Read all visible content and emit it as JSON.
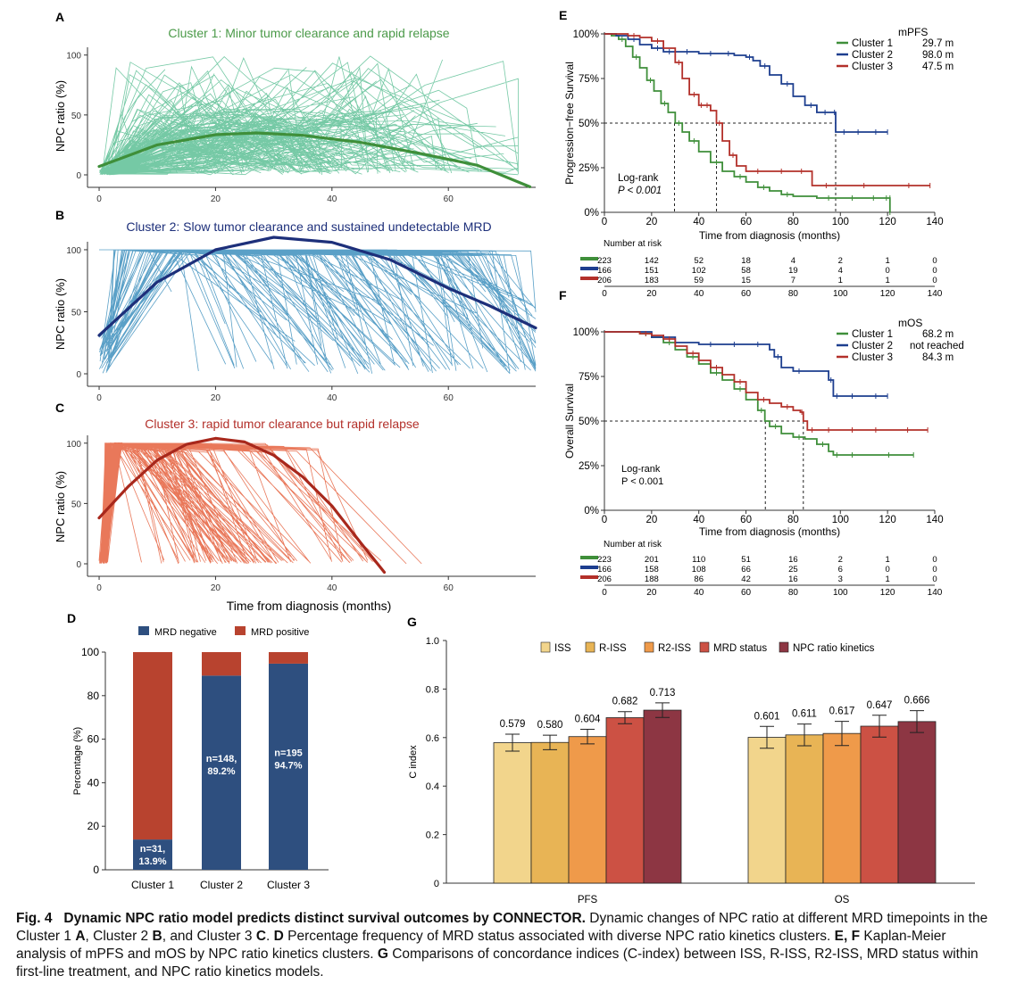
{
  "figure": {
    "panels": {
      "A": {
        "letter": "A",
        "title": "Cluster 1: Minor tumor clearance and rapid relapse",
        "ylabel": "NPC ratio (%)",
        "color": "#5dbf95",
        "trend_color": "#3f8f3a",
        "title_color": "#4b9a49"
      },
      "B": {
        "letter": "B",
        "title": "Cluster 2: Slow tumor clearance and sustained undetectable MRD",
        "ylabel": "NPC ratio (%)",
        "color": "#3d8fbd",
        "trend_color": "#1d2f7a",
        "title_color": "#1d2f7a"
      },
      "C": {
        "letter": "C",
        "title": "Cluster 3: rapid tumor clearance but rapid relapse",
        "ylabel": "NPC ratio (%)",
        "xlabel": "Time from diagnosis (months)",
        "color": "#e5603d",
        "trend_color": "#a8281c",
        "title_color": "#b3302a"
      },
      "D": {
        "letter": "D"
      },
      "E": {
        "letter": "E",
        "legend_title": "mPFS",
        "ylabel": "Progression−free Survival",
        "xlabel": "Time from diagnosis (months)",
        "test_label": "Log-rank",
        "p_label": "P < 0.001",
        "risk_title": "Number at risk"
      },
      "F": {
        "letter": "F",
        "legend_title": "mOS",
        "ylabel": "Overall Survival",
        "xlabel": "Time from diagnosis (months)",
        "test_label": "Log-rank",
        "p_label": "P < 0.001",
        "risk_title": "Number at risk"
      },
      "G": {
        "letter": "G"
      }
    },
    "caption": {
      "fig_label": "Fig. 4",
      "title": "Dynamic NPC ratio model predicts distinct survival outcomes by CONNECTOR.",
      "parts": [
        {
          "t": " Dynamic changes of NPC ratio at different MRD timepoints in the Cluster 1 ",
          "b": false
        },
        {
          "t": "A",
          "b": true
        },
        {
          "t": ", Cluster 2 ",
          "b": false
        },
        {
          "t": "B",
          "b": true
        },
        {
          "t": ", and Cluster 3 ",
          "b": false
        },
        {
          "t": "C",
          "b": true
        },
        {
          "t": ". ",
          "b": false
        },
        {
          "t": "D",
          "b": true
        },
        {
          "t": " Percentage frequency of MRD status associated with diverse NPC ratio kinetics clusters. ",
          "b": false
        },
        {
          "t": "E, F",
          "b": true
        },
        {
          "t": " Kaplan-Meier analysis of mPFS and mOS by NPC ratio kinetics clusters. ",
          "b": false
        },
        {
          "t": "G",
          "b": true
        },
        {
          "t": " Comparisons of concordance indices (C-index) between ISS, R-ISS, R2-ISS, MRD status within first-line treatment, and NPC ratio kinetics models.",
          "b": false
        }
      ]
    }
  },
  "chart_data": [
    {
      "id": "A",
      "type": "line",
      "title": "Cluster 1: Minor tumor clearance and rapid relapse",
      "xlabel": "",
      "ylabel": "NPC ratio (%)",
      "xlim": [
        -2,
        75
      ],
      "ylim": [
        0,
        105
      ],
      "xticks": [
        0,
        20,
        40,
        60
      ],
      "yticks": [
        0,
        50,
        100
      ],
      "trend": {
        "x": [
          0,
          10,
          20,
          27,
          35,
          45,
          55,
          65,
          74
        ],
        "y": [
          7,
          25,
          33.5,
          35,
          33,
          27,
          18,
          8,
          -10
        ]
      }
    },
    {
      "id": "B",
      "type": "line",
      "title": "Cluster 2: Slow tumor clearance and sustained undetectable MRD",
      "xlabel": "",
      "ylabel": "NPC ratio (%)",
      "xlim": [
        -2,
        75
      ],
      "ylim": [
        0,
        105
      ],
      "xticks": [
        0,
        20,
        40,
        60
      ],
      "yticks": [
        0,
        50,
        100
      ],
      "trend": {
        "x": [
          0,
          10,
          20,
          30,
          40,
          50,
          60,
          67,
          75
        ],
        "y": [
          31,
          74,
          100,
          110,
          106,
          92,
          69,
          55,
          37
        ]
      }
    },
    {
      "id": "C",
      "type": "line",
      "title": "Cluster 3: rapid tumor clearance but rapid relapse",
      "xlabel": "Time from diagnosis (months)",
      "ylabel": "NPC ratio (%)",
      "xlim": [
        -2,
        75
      ],
      "ylim": [
        0,
        105
      ],
      "xticks": [
        0,
        20,
        40,
        60
      ],
      "yticks": [
        0,
        50,
        100
      ],
      "trend": {
        "x": [
          0,
          5,
          10,
          15,
          20,
          25,
          30,
          35,
          40,
          45,
          49
        ],
        "y": [
          38,
          64,
          86,
          99,
          104,
          101,
          90,
          72,
          48,
          17,
          -7
        ]
      }
    },
    {
      "id": "D",
      "type": "bar",
      "xlabel": "",
      "ylabel": "Percentage (%)",
      "ylim": [
        0,
        100
      ],
      "yticks": [
        0,
        20,
        40,
        60,
        80,
        100
      ],
      "categories": [
        "Cluster 1",
        "Cluster 2",
        "Cluster 3"
      ],
      "series": [
        {
          "name": "MRD negative",
          "color": "#2e4f7f",
          "values": [
            13.9,
            89.2,
            94.7
          ],
          "labels": [
            "n=31,|13.9%",
            "n=148,|89.2%",
            "n=195|94.7%"
          ]
        },
        {
          "name": "MRD positive",
          "color": "#b8432f",
          "values": [
            86.1,
            10.8,
            5.3
          ]
        }
      ]
    },
    {
      "id": "E",
      "type": "line",
      "xlabel": "Time from diagnosis (months)",
      "ylabel": "Progression−free Survival",
      "xlim": [
        0,
        140
      ],
      "ylim": [
        0,
        100
      ],
      "xticks": [
        0,
        20,
        40,
        60,
        80,
        100,
        120,
        140
      ],
      "ytick_labels": [
        "0%",
        "25%",
        "50%",
        "75%",
        "100%"
      ],
      "legend_title": "mPFS",
      "medians": [
        29.7,
        98.0,
        47.5
      ],
      "series": [
        {
          "name": "Cluster 1",
          "median_label": "29.7 m",
          "color": "#3f8f3a",
          "x": [
            0,
            3,
            6,
            9,
            12,
            15,
            18,
            21,
            24,
            27,
            30,
            33,
            36,
            40,
            45,
            50,
            55,
            60,
            65,
            70,
            75,
            80,
            90,
            100,
            110,
            118,
            121,
            121
          ],
          "y": [
            100,
            99,
            97,
            93,
            87,
            81,
            74,
            68,
            61,
            56,
            50,
            45,
            40,
            34,
            28,
            23,
            20,
            17,
            14,
            12,
            10,
            9,
            8,
            8,
            8,
            8,
            8,
            0
          ]
        },
        {
          "name": "Cluster 2",
          "median_label": "98.0 m",
          "color": "#1d3e8f",
          "x": [
            0,
            5,
            10,
            15,
            20,
            25,
            30,
            40,
            50,
            55,
            60,
            63,
            66,
            70,
            75,
            80,
            85,
            90,
            97,
            98,
            105,
            110,
            120
          ],
          "y": [
            100,
            99,
            97,
            94,
            92,
            90,
            90,
            89,
            89,
            88,
            87,
            85,
            82,
            77,
            72,
            65,
            60,
            56,
            56,
            45,
            45,
            45,
            45
          ]
        },
        {
          "name": "Cluster 3",
          "median_label": "47.5 m",
          "color": "#b3302a",
          "x": [
            0,
            5,
            10,
            15,
            20,
            25,
            30,
            33,
            36,
            40,
            42,
            45,
            47.5,
            50,
            53,
            56,
            60,
            70,
            80,
            87,
            88,
            100,
            120,
            138
          ],
          "y": [
            100,
            100,
            99,
            98,
            96,
            92,
            84,
            75,
            66,
            60,
            60,
            57,
            50,
            40,
            32,
            26,
            23,
            23,
            23,
            23,
            15,
            15,
            15,
            15
          ]
        }
      ],
      "risk": {
        "title": "Number at risk",
        "x": [
          0,
          20,
          40,
          60,
          80,
          100,
          120,
          140
        ],
        "rows": [
          [
            223,
            142,
            52,
            18,
            4,
            2,
            1,
            0
          ],
          [
            166,
            151,
            102,
            58,
            19,
            4,
            0,
            0
          ],
          [
            206,
            183,
            59,
            15,
            7,
            1,
            1,
            0
          ]
        ]
      }
    },
    {
      "id": "F",
      "type": "line",
      "xlabel": "Time from diagnosis (months)",
      "ylabel": "Overall Survival",
      "xlim": [
        0,
        140
      ],
      "ylim": [
        0,
        100
      ],
      "xticks": [
        0,
        20,
        40,
        60,
        80,
        100,
        120,
        140
      ],
      "ytick_labels": [
        "0%",
        "25%",
        "50%",
        "75%",
        "100%"
      ],
      "legend_title": "mOS",
      "medians": [
        68.2,
        84.3
      ],
      "series": [
        {
          "name": "Cluster 1",
          "median_label": "68.2 m",
          "color": "#3f8f3a",
          "x": [
            0,
            10,
            15,
            20,
            25,
            30,
            35,
            40,
            45,
            50,
            55,
            60,
            65,
            68,
            70,
            75,
            80,
            85,
            90,
            95,
            97,
            100,
            110,
            131
          ],
          "y": [
            100,
            100,
            99,
            97,
            94,
            90,
            86,
            82,
            77,
            73,
            68,
            62,
            56,
            50,
            47,
            43,
            41,
            40,
            37,
            33,
            31,
            31,
            31,
            31
          ]
        },
        {
          "name": "Cluster 2",
          "median_label": "not reached",
          "color": "#1d3e8f",
          "x": [
            0,
            10,
            20,
            30,
            40,
            50,
            60,
            70,
            72,
            75,
            80,
            85,
            95,
            97,
            100,
            110,
            120
          ],
          "y": [
            100,
            100,
            97,
            94,
            93,
            93,
            93,
            90,
            86,
            80,
            78,
            78,
            73,
            64,
            64,
            64,
            64
          ]
        },
        {
          "name": "Cluster 3",
          "median_label": "84.3 m",
          "color": "#b3302a",
          "x": [
            0,
            10,
            15,
            20,
            25,
            30,
            35,
            40,
            45,
            50,
            55,
            60,
            65,
            70,
            75,
            80,
            83,
            84.3,
            86,
            90,
            100,
            110,
            120,
            137
          ],
          "y": [
            100,
            100,
            99,
            98,
            96,
            92,
            88,
            84,
            80,
            76,
            72,
            66,
            62,
            60,
            58,
            56,
            55,
            50,
            45,
            45,
            45,
            45,
            45,
            45
          ]
        }
      ],
      "risk": {
        "title": "Number at risk",
        "x": [
          0,
          20,
          40,
          60,
          80,
          100,
          120,
          140
        ],
        "rows": [
          [
            223,
            201,
            110,
            51,
            16,
            2,
            1,
            0
          ],
          [
            166,
            158,
            108,
            66,
            25,
            6,
            0,
            0
          ],
          [
            206,
            188,
            86,
            42,
            16,
            3,
            1,
            0
          ]
        ]
      }
    },
    {
      "id": "G",
      "type": "bar",
      "xlabel": "",
      "ylabel": "C index",
      "ylim": [
        0,
        1.0
      ],
      "yticks": [
        0,
        0.2,
        0.4,
        0.6,
        0.8,
        1.0
      ],
      "categories": [
        "PFS",
        "OS"
      ],
      "series": [
        {
          "name": "ISS",
          "color": "#f2d58c",
          "values": [
            0.579,
            0.601
          ],
          "err": [
            0.035,
            0.045
          ]
        },
        {
          "name": "R-ISS",
          "color": "#e8b455",
          "values": [
            0.58,
            0.611
          ],
          "err": [
            0.03,
            0.045
          ]
        },
        {
          "name": "R2-ISS",
          "color": "#ef9a4a",
          "values": [
            0.604,
            0.617
          ],
          "err": [
            0.03,
            0.05
          ]
        },
        {
          "name": "MRD status",
          "color": "#cc5144",
          "values": [
            0.682,
            0.647
          ],
          "err": [
            0.025,
            0.045
          ]
        },
        {
          "name": "NPC ratio kinetics",
          "color": "#8d3643",
          "values": [
            0.713,
            0.666
          ],
          "err": [
            0.03,
            0.045
          ]
        }
      ]
    }
  ]
}
